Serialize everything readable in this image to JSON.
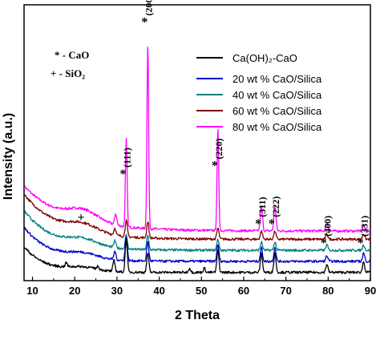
{
  "chart_data": {
    "type": "line",
    "xlabel": "2 Theta",
    "ylabel": "Intensity (a.u.)",
    "xlim": [
      8,
      90
    ],
    "xticks": [
      "10",
      "20",
      "30",
      "40",
      "50",
      "60",
      "70",
      "80",
      "90"
    ],
    "xtick_values": [
      10,
      20,
      30,
      40,
      50,
      60,
      70,
      80,
      90
    ],
    "ylim": [
      0,
      100
    ],
    "legend_position": "top-right",
    "key": {
      "cao": "* - CaO",
      "sio2": "+ - SiO₂"
    },
    "series": [
      {
        "name": "Ca(OH)₂-CaO",
        "color": "#000000",
        "baseline": 3,
        "edge": 9,
        "decay": 0.2,
        "hump": 1.5,
        "peaks": [
          [
            18.0,
            1.5
          ],
          [
            25.5,
            1.0
          ],
          [
            29.3,
            4
          ],
          [
            32.2,
            12
          ],
          [
            37.3,
            7
          ],
          [
            47.2,
            1.5
          ],
          [
            50.7,
            1.5
          ],
          [
            53.9,
            8
          ],
          [
            64.2,
            7
          ],
          [
            67.4,
            7
          ],
          [
            79.7,
            3
          ],
          [
            88.4,
            4
          ]
        ]
      },
      {
        "name": "20 wt % CaO/Silica",
        "color": "#0000cc",
        "baseline": 7,
        "edge": 12,
        "decay": 0.16,
        "hump": 2,
        "peaks": [
          [
            29.5,
            3
          ],
          [
            32.2,
            9
          ],
          [
            37.3,
            7
          ],
          [
            53.9,
            6
          ],
          [
            64.2,
            5
          ],
          [
            67.4,
            5
          ],
          [
            79.7,
            2
          ],
          [
            88.4,
            3
          ]
        ]
      },
      {
        "name": "40 wt % CaO/Silica",
        "color": "#008080",
        "baseline": 11,
        "edge": 14,
        "decay": 0.14,
        "hump": 2.5,
        "peaks": [
          [
            29.5,
            2.5
          ],
          [
            32.2,
            5
          ],
          [
            37.3,
            5
          ],
          [
            53.9,
            4
          ],
          [
            64.2,
            3
          ],
          [
            67.4,
            3
          ],
          [
            79.7,
            2
          ],
          [
            88.4,
            2
          ]
        ]
      },
      {
        "name": "60 wt % CaO/Silica",
        "color": "#800000",
        "baseline": 15,
        "edge": 16,
        "decay": 0.12,
        "hump": 3,
        "peaks": [
          [
            29.5,
            2.5
          ],
          [
            32.2,
            6
          ],
          [
            37.3,
            6
          ],
          [
            53.9,
            4
          ],
          [
            64.2,
            3
          ],
          [
            67.4,
            3
          ],
          [
            79.7,
            2
          ],
          [
            88.4,
            2
          ]
        ]
      },
      {
        "name": "80 wt % CaO/Silica",
        "color": "#ff00ff",
        "baseline": 18,
        "edge": 16,
        "decay": 0.1,
        "hump": 4,
        "peaks": [
          [
            29.7,
            4
          ],
          [
            32.2,
            32
          ],
          [
            37.3,
            67
          ],
          [
            53.9,
            37
          ],
          [
            64.2,
            9
          ],
          [
            67.4,
            9
          ],
          [
            79.7,
            3
          ],
          [
            88.4,
            2
          ]
        ]
      }
    ],
    "annotations": [
      {
        "marker": "*",
        "label": "(111)",
        "x": 32.2,
        "y": 39
      },
      {
        "marker": "*",
        "label": "(200)",
        "x": 37.3,
        "y": 94
      },
      {
        "marker": "*",
        "label": "(220)",
        "x": 53.9,
        "y": 42
      },
      {
        "marker": "*",
        "label": "(311)",
        "x": 64.2,
        "y": 21
      },
      {
        "marker": "*",
        "label": "(222)",
        "x": 67.4,
        "y": 21
      },
      {
        "marker": "*",
        "label": "(400)",
        "x": 79.7,
        "y": 14
      },
      {
        "marker": "*",
        "label": "(331)",
        "x": 88.4,
        "y": 14
      },
      {
        "marker": "+",
        "label": "",
        "x": 21.5,
        "y": 21.5
      }
    ]
  }
}
